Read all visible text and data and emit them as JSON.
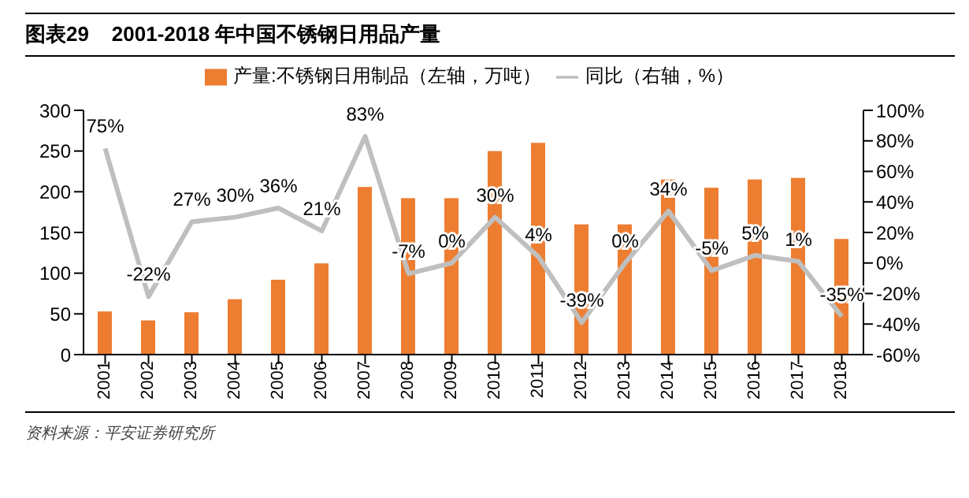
{
  "chart_data": {
    "type": "bar",
    "title": "图表29    2001-2018 年中国不锈钢日用品产量",
    "categories": [
      "2001",
      "2002",
      "2003",
      "2004",
      "2005",
      "2006",
      "2007",
      "2008",
      "2009",
      "2010",
      "2011",
      "2012",
      "2013",
      "2014",
      "2015",
      "2016",
      "2017",
      "2018"
    ],
    "series": [
      {
        "name": "产量:不锈钢日用制品（左轴，万吨）",
        "color": "#ed7d31",
        "values": [
          53,
          42,
          52,
          68,
          92,
          112,
          206,
          192,
          192,
          250,
          260,
          160,
          160,
          215,
          205,
          215,
          217,
          142
        ]
      },
      {
        "name": "同比（右轴，%）",
        "type": "line",
        "axis": "y2",
        "color": "#bfbfbf",
        "values": [
          75,
          -22,
          27,
          30,
          36,
          21,
          83,
          -7,
          0,
          30,
          4,
          -39,
          0,
          34,
          -5,
          5,
          1,
          -35
        ],
        "value_labels": [
          "75%",
          "-22%",
          "27%",
          "30%",
          "36%",
          "21%",
          "83%",
          "-7%",
          "0%",
          "30%",
          "4%",
          "-39%",
          "0%",
          "34%",
          "-5%",
          "5%",
          "1%",
          "-35%"
        ]
      }
    ],
    "ylim": [
      0,
      300
    ],
    "yticks": [
      0,
      50,
      100,
      150,
      200,
      250,
      300
    ],
    "y2lim": [
      -60,
      100
    ],
    "y2ticks": [
      {
        "value": -60,
        "label": "-60%"
      },
      {
        "value": -40,
        "label": "-40%"
      },
      {
        "value": -20,
        "label": "-20%"
      },
      {
        "value": 0,
        "label": "0%"
      },
      {
        "value": 20,
        "label": "20%"
      },
      {
        "value": 40,
        "label": "40%"
      },
      {
        "value": 60,
        "label": "60%"
      },
      {
        "value": 80,
        "label": "80%"
      },
      {
        "value": 100,
        "label": "100%"
      }
    ],
    "grid": false,
    "legend": "top",
    "marker": "none",
    "annotations": [
      "资料来源：平安证券研究所"
    ]
  }
}
